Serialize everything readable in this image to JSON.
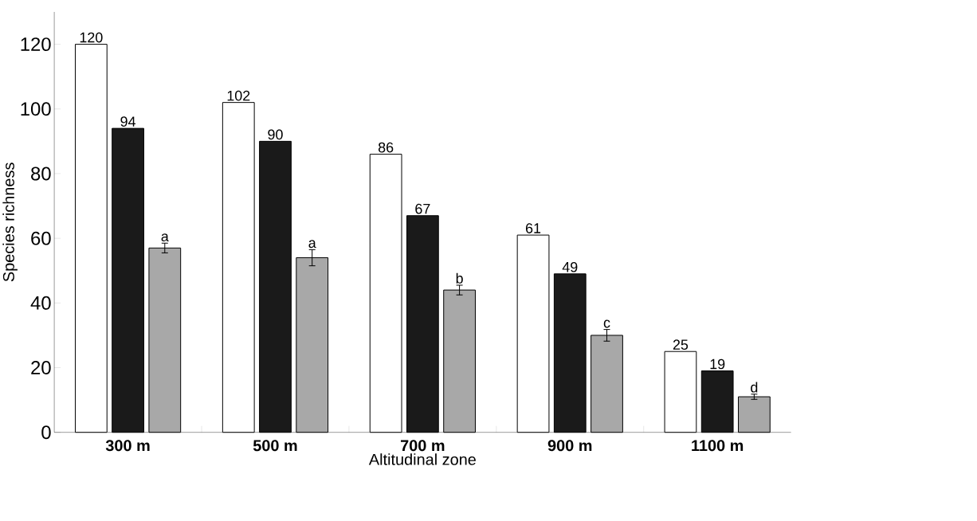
{
  "chart_data": {
    "type": "bar",
    "xlabel": "Altitudinal zone",
    "ylabel": "Species richness",
    "categories": [
      "300 m",
      "500 m",
      "700 m",
      "900 m",
      "1100 m"
    ],
    "ylim": [
      0,
      130
    ],
    "yticks": [
      0,
      20,
      40,
      60,
      80,
      100,
      120
    ],
    "series": [
      {
        "color": "#ffffff",
        "values": [
          120,
          102,
          86,
          61,
          25
        ],
        "value_labels": [
          "120",
          "102",
          "86",
          "61",
          "25"
        ]
      },
      {
        "color": "#1a1a1a",
        "values": [
          94,
          90,
          67,
          49,
          19
        ],
        "value_labels": [
          "94",
          "90",
          "67",
          "49",
          "19"
        ]
      },
      {
        "color": "#a8a8a8",
        "values": [
          57,
          54,
          44,
          30,
          11
        ],
        "errors": [
          1.5,
          2.5,
          1.5,
          1.8,
          0.8
        ],
        "value_labels": [
          "a",
          "a",
          "b",
          "c",
          "d"
        ]
      }
    ]
  }
}
